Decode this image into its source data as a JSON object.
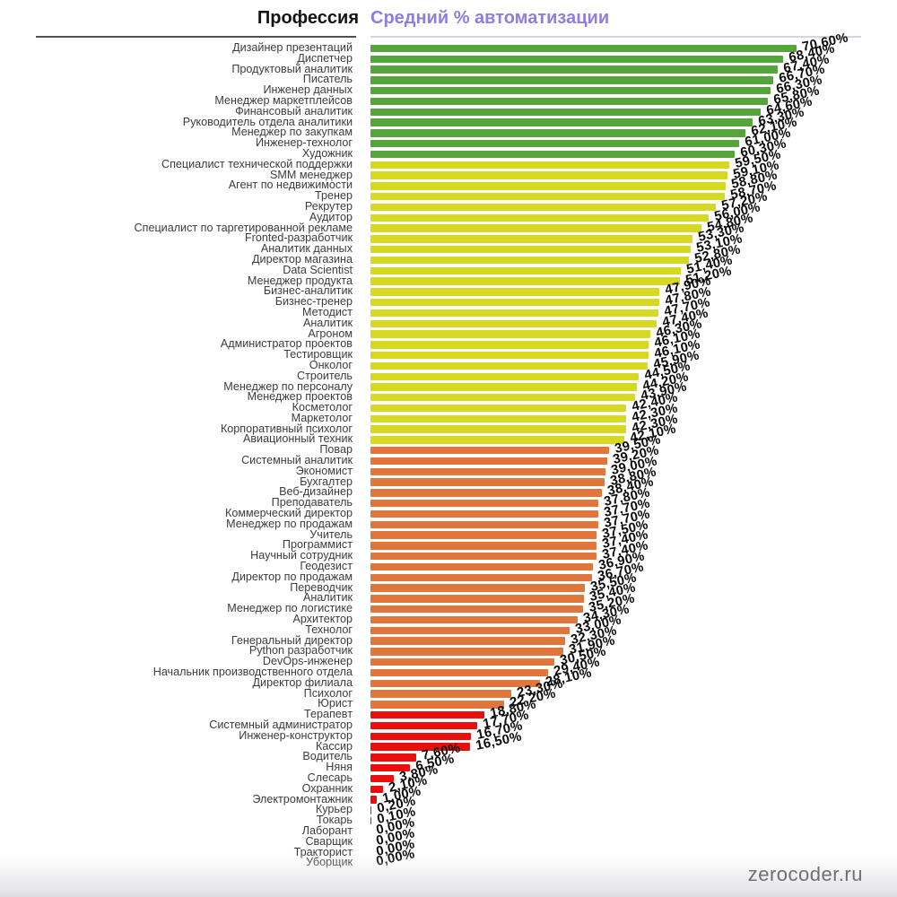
{
  "header": {
    "profession_col": "Профессия",
    "value_col": "Средний % автоматизации",
    "value_col_color": "#8f7de2"
  },
  "watermark": "zerocoder.ru",
  "chart_data": {
    "type": "bar",
    "orientation": "horizontal",
    "title": "Средний % автоматизации",
    "xlabel": "Средний % автоматизации",
    "ylabel": "Профессия",
    "xlim": [
      0,
      74
    ],
    "grid": false,
    "legend": "none",
    "value_label_format": "comma-decimal percent, 2 places, rotated",
    "palette": {
      "green": "#56a53c",
      "yellow": "#d6d821",
      "orange": "#e1763c",
      "red": "#ea0f0f"
    },
    "color_rule": "value>=60 green, 40-60 yellow, 20-40 orange, <20 red",
    "categories": [
      "Дизайнер презентаций",
      "Диспетчер",
      "Продуктовый аналитик",
      "Писатель",
      "Инженер данных",
      "Менеджер маркетплейсов",
      "Финансовый аналитик",
      "Руководитель отдела аналитики",
      "Менеджер по закупкам",
      "Инженер-технолог",
      "Художник",
      "Специалист технической поддержки",
      "SMM менеджер",
      "Агент по недвижимости",
      "Тренер",
      "Рекрутер",
      "Аудитор",
      "Специалист по таргетированной рекламе",
      "Fronted-разработчик",
      "Аналитик данных",
      "Директор магазина",
      "Data Scientist",
      "Менеджер продукта",
      "Бизнес-аналитик",
      "Бизнес-тренер",
      "Методист",
      "Аналитик",
      "Агроном",
      "Администратор проектов",
      "Тестировщик",
      "Онколог",
      "Строитель",
      "Менеджер по персоналу",
      "Менеджер проектов",
      "Косметолог",
      "Маркетолог",
      "Корпоративный психолог",
      "Авиационный техник",
      "Повар",
      "Системный аналитик",
      "Экономист",
      "Бухгалтер",
      "Веб-дизайнер",
      "Преподаватель",
      "Коммерческий директор",
      "Менеджер по продажам",
      "Учитель",
      "Программист",
      "Научный сотрудник",
      "Геодезист",
      "Директор по продажам",
      "Переводчик",
      "Аналитик",
      "Менеджер по логистике",
      "Архитектор",
      "Технолог",
      "Генеральный директор",
      "Python разработчик",
      "DevOps-инженер",
      "Начальник производственного отдела",
      "Директор филиала",
      "Психолог",
      "Юрист",
      "Терапевт",
      "Системный администратор",
      "Инженер-конструктор",
      "Кассир",
      "Водитель",
      "Няня",
      "Слесарь",
      "Охранник",
      "Электромонтажник",
      "Курьер",
      "Токарь",
      "Лаборант",
      "Сварщик",
      "Тракторист",
      "Уборщик"
    ],
    "values": [
      70.6,
      68.4,
      67.4,
      66.7,
      66.3,
      65.8,
      64.6,
      63.3,
      62.1,
      61.0,
      60.3,
      59.5,
      59.1,
      58.8,
      58.7,
      57.2,
      56.0,
      54.8,
      53.3,
      53.1,
      52.8,
      51.4,
      51.2,
      47.9,
      47.8,
      47.7,
      47.4,
      46.3,
      46.1,
      46.1,
      45.9,
      44.5,
      44.2,
      43.9,
      42.4,
      42.3,
      42.3,
      42.1,
      39.5,
      39.2,
      39.0,
      38.8,
      38.4,
      37.8,
      37.7,
      37.7,
      37.5,
      37.4,
      37.4,
      36.9,
      36.7,
      35.5,
      35.4,
      35.2,
      34.3,
      33.0,
      32.3,
      31.9,
      30.5,
      29.4,
      28.1,
      23.3,
      22.2,
      18.8,
      17.7,
      16.7,
      16.5,
      7.6,
      6.5,
      3.8,
      2.1,
      1.0,
      0.2,
      0.1,
      0.0,
      0.0,
      0.0,
      0.0
    ]
  }
}
